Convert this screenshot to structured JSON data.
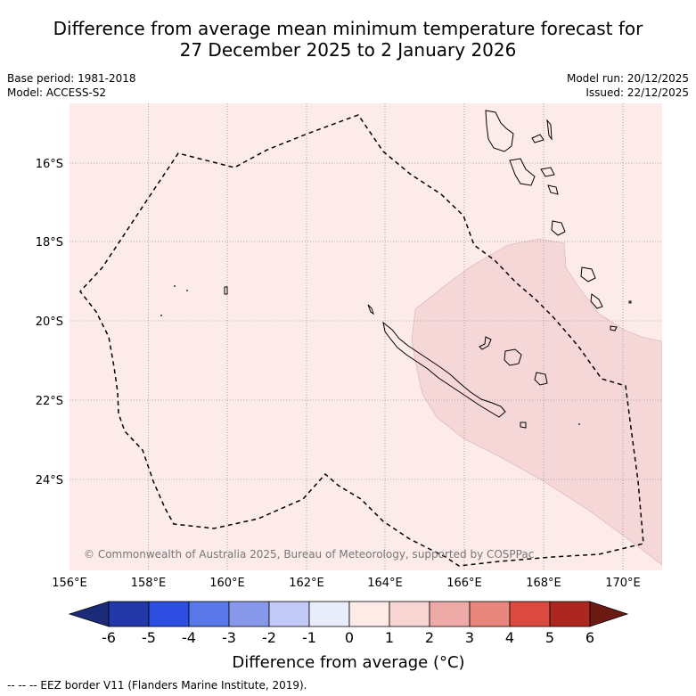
{
  "title": {
    "line1": "Difference from average mean minimum temperature forecast for",
    "line2": "27 December 2025 to 2 January 2026"
  },
  "meta": {
    "base_period": "Base period: 1981-2018",
    "model": "Model: ACCESS-S2",
    "model_run": "Model run: 20/12/2025",
    "issued": "Issued: 22/12/2025"
  },
  "map": {
    "lon_labels": [
      "156°E",
      "158°E",
      "160°E",
      "162°E",
      "164°E",
      "166°E",
      "168°E",
      "170°E"
    ],
    "lat_labels": [
      "16°S",
      "18°S",
      "20°S",
      "22°S",
      "24°S"
    ],
    "copyright": "© Commonwealth of Australia 2025, Bureau of Meteorology, supported by COSPPac",
    "region_values": [
      {
        "region": "background",
        "category": "0 to 1",
        "color": "#fcebe9"
      },
      {
        "region": "south-east plume",
        "category": "1 to 2",
        "color": "#f5d7d7"
      }
    ]
  },
  "colorbar": {
    "ticks": [
      "-6",
      "-5",
      "-4",
      "-3",
      "-2",
      "-1",
      "0",
      "1",
      "2",
      "3",
      "4",
      "5",
      "6"
    ],
    "colors": [
      "#2238a8",
      "#2d4ee0",
      "#5a78e8",
      "#8899ec",
      "#c2c9f5",
      "#e9ecfa",
      "#fdebe8",
      "#f6d5d3",
      "#eeaaa6",
      "#e8857d",
      "#db4a3e",
      "#ab271f"
    ],
    "under_color": "#1c2a7a",
    "over_color": "#6e1a14",
    "label": "Difference from average (°C)"
  },
  "footnote": "--  --  -- EEZ border V11 (Flanders Marine Institute, 2019)."
}
